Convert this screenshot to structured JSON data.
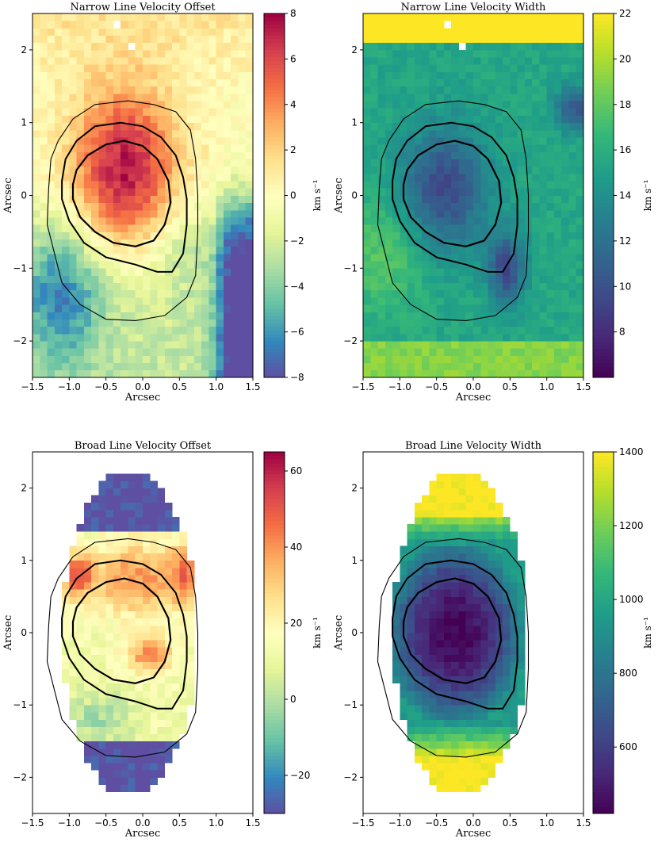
{
  "chart_data": [
    {
      "type": "heatmap",
      "title": "Narrow Line Velocity Offset",
      "xlabel": "Arcsec",
      "ylabel": "Arcsec",
      "xlim": [
        -1.5,
        1.5
      ],
      "ylim": [
        -2.5,
        2.5
      ],
      "xticks": [
        "−1.5",
        "−1.0",
        "−0.5",
        "0.0",
        "0.5",
        "1.0",
        "1.5"
      ],
      "yticks": [
        "−2",
        "−1",
        "0",
        "1",
        "2"
      ],
      "colorbar": {
        "label": "km s⁻¹",
        "colormap": "Spectral_r",
        "range": [
          -8,
          8
        ],
        "ticks": [
          "−8",
          "−6",
          "−4",
          "−2",
          "0",
          "2",
          "4",
          "6",
          "8"
        ]
      },
      "mask": "full"
    },
    {
      "type": "heatmap",
      "title": "Narrow Line Velocity Width",
      "xlabel": "Arcsec",
      "ylabel": "Arcsec",
      "xlim": [
        -1.5,
        1.5
      ],
      "ylim": [
        -2.5,
        2.5
      ],
      "xticks": [
        "−1.5",
        "−1.0",
        "−0.5",
        "0.0",
        "0.5",
        "1.0",
        "1.5"
      ],
      "yticks": [
        "−2",
        "−1",
        "0",
        "1",
        "2"
      ],
      "colorbar": {
        "label": "km s⁻¹",
        "colormap": "viridis",
        "range": [
          6,
          22
        ],
        "ticks": [
          "8",
          "10",
          "12",
          "14",
          "16",
          "18",
          "20",
          "22"
        ]
      },
      "mask": "full"
    },
    {
      "type": "heatmap",
      "title": "Broad Line Velocity Offset",
      "xlabel": "Arcsec",
      "ylabel": "Arcsec",
      "xlim": [
        -1.5,
        1.5
      ],
      "ylim": [
        -2.5,
        2.5
      ],
      "xticks": [
        "−1.5",
        "−1.0",
        "−0.5",
        "0.0",
        "0.5",
        "1.0",
        "1.5"
      ],
      "yticks": [
        "−2",
        "−1",
        "0",
        "1",
        "2"
      ],
      "colorbar": {
        "label": "km s⁻¹",
        "colormap": "Spectral_r",
        "range": [
          -30,
          65
        ],
        "ticks": [
          "−20",
          "0",
          "20",
          "40",
          "60"
        ]
      },
      "mask": "lens"
    },
    {
      "type": "heatmap",
      "title": "Broad Line Velocity Width",
      "xlabel": "Arcsec",
      "ylabel": "Arcsec",
      "xlim": [
        -1.5,
        1.5
      ],
      "ylim": [
        -2.5,
        2.5
      ],
      "xticks": [
        "−1.5",
        "−1.0",
        "−0.5",
        "0.0",
        "0.5",
        "1.0",
        "1.5"
      ],
      "yticks": [
        "−2",
        "−1",
        "0",
        "1",
        "2"
      ],
      "colorbar": {
        "label": "km s⁻¹",
        "colormap": "viridis",
        "range": [
          420,
          1400
        ],
        "ticks": [
          "600",
          "800",
          "1000",
          "1200",
          "1400"
        ]
      },
      "mask": "lens"
    }
  ]
}
